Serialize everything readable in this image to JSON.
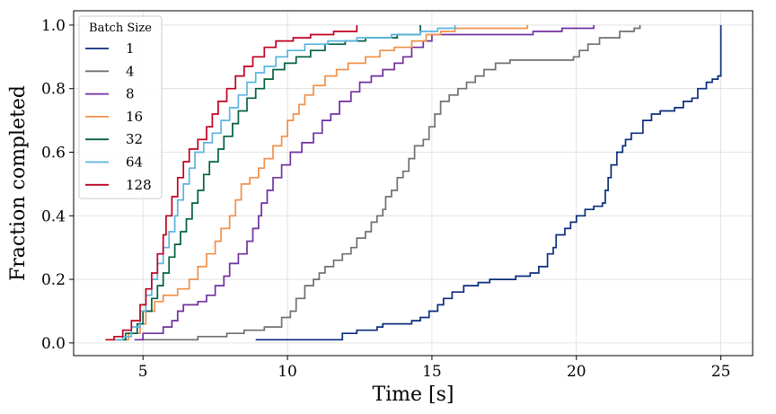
{
  "chart_data": {
    "type": "line",
    "drawstyle": "steps-post",
    "title": "",
    "xlabel": "Time [s]",
    "ylabel": "Fraction completed",
    "xlim": [
      2.6,
      26.1
    ],
    "ylim": [
      -0.04,
      1.045
    ],
    "xticks": [
      5,
      10,
      15,
      20,
      25
    ],
    "yticks": [
      0.0,
      0.2,
      0.4,
      0.6,
      0.8,
      1.0
    ],
    "xtick_labels": [
      "5",
      "10",
      "15",
      "20",
      "25"
    ],
    "ytick_labels": [
      "0.0",
      "0.2",
      "0.4",
      "0.6",
      "0.8",
      "1.0"
    ],
    "grid": true,
    "legend": {
      "title": "Batch Size",
      "position": "top-left"
    },
    "series": [
      {
        "name": "1",
        "color": "#0b2c7c",
        "points": [
          [
            8.9,
            0.01
          ],
          [
            11.5,
            0.01
          ],
          [
            11.9,
            0.03
          ],
          [
            12.4,
            0.04
          ],
          [
            13.1,
            0.05
          ],
          [
            13.3,
            0.06
          ],
          [
            14.3,
            0.07
          ],
          [
            14.6,
            0.08
          ],
          [
            14.9,
            0.1
          ],
          [
            15.2,
            0.12
          ],
          [
            15.4,
            0.14
          ],
          [
            15.7,
            0.16
          ],
          [
            16.1,
            0.18
          ],
          [
            16.6,
            0.19
          ],
          [
            17.0,
            0.2
          ],
          [
            17.9,
            0.21
          ],
          [
            18.4,
            0.22
          ],
          [
            18.7,
            0.24
          ],
          [
            19.0,
            0.28
          ],
          [
            19.2,
            0.3
          ],
          [
            19.3,
            0.34
          ],
          [
            19.6,
            0.36
          ],
          [
            19.8,
            0.38
          ],
          [
            20.0,
            0.4
          ],
          [
            20.3,
            0.42
          ],
          [
            20.6,
            0.43
          ],
          [
            20.9,
            0.44
          ],
          [
            21.0,
            0.48
          ],
          [
            21.1,
            0.52
          ],
          [
            21.2,
            0.56
          ],
          [
            21.4,
            0.6
          ],
          [
            21.6,
            0.62
          ],
          [
            21.7,
            0.64
          ],
          [
            21.9,
            0.66
          ],
          [
            22.3,
            0.7
          ],
          [
            22.6,
            0.72
          ],
          [
            22.9,
            0.73
          ],
          [
            23.4,
            0.74
          ],
          [
            23.7,
            0.76
          ],
          [
            24.0,
            0.77
          ],
          [
            24.2,
            0.8
          ],
          [
            24.5,
            0.82
          ],
          [
            24.7,
            0.83
          ],
          [
            24.9,
            0.84
          ],
          [
            25.0,
            1.0
          ]
        ]
      },
      {
        "name": "4",
        "color": "#707070",
        "points": [
          [
            5.0,
            0.01
          ],
          [
            6.9,
            0.02
          ],
          [
            7.9,
            0.03
          ],
          [
            8.5,
            0.04
          ],
          [
            9.2,
            0.05
          ],
          [
            9.8,
            0.08
          ],
          [
            10.1,
            0.1
          ],
          [
            10.3,
            0.14
          ],
          [
            10.6,
            0.18
          ],
          [
            10.9,
            0.2
          ],
          [
            11.1,
            0.22
          ],
          [
            11.3,
            0.24
          ],
          [
            11.6,
            0.26
          ],
          [
            11.9,
            0.28
          ],
          [
            12.2,
            0.3
          ],
          [
            12.4,
            0.33
          ],
          [
            12.7,
            0.35
          ],
          [
            12.9,
            0.38
          ],
          [
            13.1,
            0.4
          ],
          [
            13.3,
            0.42
          ],
          [
            13.4,
            0.46
          ],
          [
            13.6,
            0.48
          ],
          [
            13.8,
            0.52
          ],
          [
            14.0,
            0.54
          ],
          [
            14.2,
            0.58
          ],
          [
            14.4,
            0.62
          ],
          [
            14.7,
            0.64
          ],
          [
            14.9,
            0.68
          ],
          [
            15.1,
            0.72
          ],
          [
            15.3,
            0.76
          ],
          [
            15.6,
            0.78
          ],
          [
            15.9,
            0.8
          ],
          [
            16.2,
            0.82
          ],
          [
            16.5,
            0.84
          ],
          [
            16.8,
            0.86
          ],
          [
            17.2,
            0.88
          ],
          [
            17.7,
            0.89
          ],
          [
            18.9,
            0.89
          ],
          [
            19.9,
            0.9
          ],
          [
            20.1,
            0.92
          ],
          [
            20.4,
            0.94
          ],
          [
            20.8,
            0.96
          ],
          [
            21.5,
            0.98
          ],
          [
            22.0,
            0.99
          ],
          [
            22.2,
            1.0
          ]
        ]
      },
      {
        "name": "8",
        "color": "#7030a0",
        "points": [
          [
            4.7,
            0.01
          ],
          [
            5.0,
            0.03
          ],
          [
            5.7,
            0.05
          ],
          [
            6.0,
            0.07
          ],
          [
            6.2,
            0.1
          ],
          [
            6.4,
            0.12
          ],
          [
            6.9,
            0.13
          ],
          [
            7.2,
            0.15
          ],
          [
            7.5,
            0.18
          ],
          [
            7.8,
            0.21
          ],
          [
            8.0,
            0.25
          ],
          [
            8.3,
            0.28
          ],
          [
            8.6,
            0.32
          ],
          [
            8.8,
            0.36
          ],
          [
            9.0,
            0.4
          ],
          [
            9.1,
            0.44
          ],
          [
            9.3,
            0.48
          ],
          [
            9.5,
            0.52
          ],
          [
            9.8,
            0.56
          ],
          [
            10.1,
            0.6
          ],
          [
            10.5,
            0.63
          ],
          [
            10.9,
            0.66
          ],
          [
            11.2,
            0.7
          ],
          [
            11.5,
            0.72
          ],
          [
            11.8,
            0.76
          ],
          [
            12.2,
            0.79
          ],
          [
            12.5,
            0.82
          ],
          [
            12.9,
            0.84
          ],
          [
            13.3,
            0.86
          ],
          [
            13.7,
            0.88
          ],
          [
            14.0,
            0.9
          ],
          [
            14.3,
            0.93
          ],
          [
            14.7,
            0.95
          ],
          [
            15.0,
            0.97
          ],
          [
            15.3,
            0.97
          ],
          [
            18.0,
            0.97
          ],
          [
            18.5,
            0.98
          ],
          [
            19.5,
            0.99
          ],
          [
            20.3,
            0.99
          ],
          [
            20.6,
            1.0
          ]
        ]
      },
      {
        "name": "16",
        "color": "#f0904a",
        "points": [
          [
            4.0,
            0.01
          ],
          [
            4.5,
            0.03
          ],
          [
            4.9,
            0.06
          ],
          [
            5.1,
            0.1
          ],
          [
            5.4,
            0.13
          ],
          [
            5.7,
            0.15
          ],
          [
            6.2,
            0.17
          ],
          [
            6.6,
            0.2
          ],
          [
            6.9,
            0.24
          ],
          [
            7.2,
            0.28
          ],
          [
            7.5,
            0.32
          ],
          [
            7.7,
            0.36
          ],
          [
            8.0,
            0.4
          ],
          [
            8.2,
            0.45
          ],
          [
            8.4,
            0.5
          ],
          [
            8.7,
            0.52
          ],
          [
            9.0,
            0.55
          ],
          [
            9.2,
            0.58
          ],
          [
            9.5,
            0.62
          ],
          [
            9.8,
            0.65
          ],
          [
            10.0,
            0.7
          ],
          [
            10.2,
            0.72
          ],
          [
            10.4,
            0.75
          ],
          [
            10.6,
            0.78
          ],
          [
            10.9,
            0.81
          ],
          [
            11.3,
            0.84
          ],
          [
            11.7,
            0.86
          ],
          [
            12.1,
            0.88
          ],
          [
            12.7,
            0.9
          ],
          [
            13.2,
            0.92
          ],
          [
            13.7,
            0.93
          ],
          [
            14.3,
            0.95
          ],
          [
            14.8,
            0.97
          ],
          [
            15.3,
            0.98
          ],
          [
            15.8,
            0.99
          ],
          [
            16.5,
            0.99
          ],
          [
            18.3,
            1.0
          ]
        ]
      },
      {
        "name": "32",
        "color": "#006040",
        "points": [
          [
            4.1,
            0.01
          ],
          [
            4.4,
            0.03
          ],
          [
            4.8,
            0.06
          ],
          [
            5.0,
            0.1
          ],
          [
            5.3,
            0.14
          ],
          [
            5.5,
            0.18
          ],
          [
            5.7,
            0.22
          ],
          [
            5.9,
            0.27
          ],
          [
            6.1,
            0.31
          ],
          [
            6.3,
            0.35
          ],
          [
            6.5,
            0.39
          ],
          [
            6.7,
            0.44
          ],
          [
            6.9,
            0.48
          ],
          [
            7.1,
            0.53
          ],
          [
            7.3,
            0.57
          ],
          [
            7.6,
            0.61
          ],
          [
            7.8,
            0.65
          ],
          [
            8.1,
            0.69
          ],
          [
            8.3,
            0.73
          ],
          [
            8.6,
            0.77
          ],
          [
            8.9,
            0.8
          ],
          [
            9.2,
            0.83
          ],
          [
            9.5,
            0.86
          ],
          [
            9.9,
            0.88
          ],
          [
            10.3,
            0.9
          ],
          [
            10.8,
            0.92
          ],
          [
            11.3,
            0.94
          ],
          [
            12.0,
            0.95
          ],
          [
            12.7,
            0.96
          ],
          [
            13.8,
            0.97
          ],
          [
            14.6,
            1.0
          ]
        ]
      },
      {
        "name": "64",
        "color": "#5ab4e0",
        "points": [
          [
            4.0,
            0.01
          ],
          [
            4.3,
            0.02
          ],
          [
            4.6,
            0.05
          ],
          [
            4.9,
            0.1
          ],
          [
            5.1,
            0.15
          ],
          [
            5.3,
            0.2
          ],
          [
            5.5,
            0.25
          ],
          [
            5.7,
            0.3
          ],
          [
            5.9,
            0.35
          ],
          [
            6.1,
            0.4
          ],
          [
            6.2,
            0.45
          ],
          [
            6.4,
            0.5
          ],
          [
            6.6,
            0.55
          ],
          [
            6.8,
            0.6
          ],
          [
            7.1,
            0.63
          ],
          [
            7.4,
            0.66
          ],
          [
            7.7,
            0.7
          ],
          [
            8.0,
            0.74
          ],
          [
            8.3,
            0.78
          ],
          [
            8.6,
            0.82
          ],
          [
            8.9,
            0.85
          ],
          [
            9.2,
            0.87
          ],
          [
            9.6,
            0.9
          ],
          [
            10.0,
            0.92
          ],
          [
            10.6,
            0.94
          ],
          [
            11.4,
            0.95
          ],
          [
            12.4,
            0.96
          ],
          [
            13.6,
            0.97
          ],
          [
            14.6,
            0.98
          ],
          [
            15.2,
            0.99
          ],
          [
            15.8,
            1.0
          ]
        ]
      },
      {
        "name": "128",
        "color": "#c00020",
        "points": [
          [
            3.7,
            0.01
          ],
          [
            4.0,
            0.02
          ],
          [
            4.3,
            0.04
          ],
          [
            4.6,
            0.07
          ],
          [
            4.9,
            0.12
          ],
          [
            5.1,
            0.17
          ],
          [
            5.3,
            0.22
          ],
          [
            5.5,
            0.28
          ],
          [
            5.7,
            0.34
          ],
          [
            5.8,
            0.4
          ],
          [
            6.0,
            0.46
          ],
          [
            6.2,
            0.52
          ],
          [
            6.4,
            0.57
          ],
          [
            6.6,
            0.61
          ],
          [
            6.9,
            0.64
          ],
          [
            7.2,
            0.68
          ],
          [
            7.4,
            0.72
          ],
          [
            7.6,
            0.76
          ],
          [
            7.9,
            0.8
          ],
          [
            8.2,
            0.84
          ],
          [
            8.5,
            0.87
          ],
          [
            8.8,
            0.9
          ],
          [
            9.2,
            0.93
          ],
          [
            9.6,
            0.95
          ],
          [
            10.2,
            0.96
          ],
          [
            10.8,
            0.97
          ],
          [
            11.6,
            0.98
          ],
          [
            12.4,
            1.0
          ]
        ]
      }
    ]
  }
}
